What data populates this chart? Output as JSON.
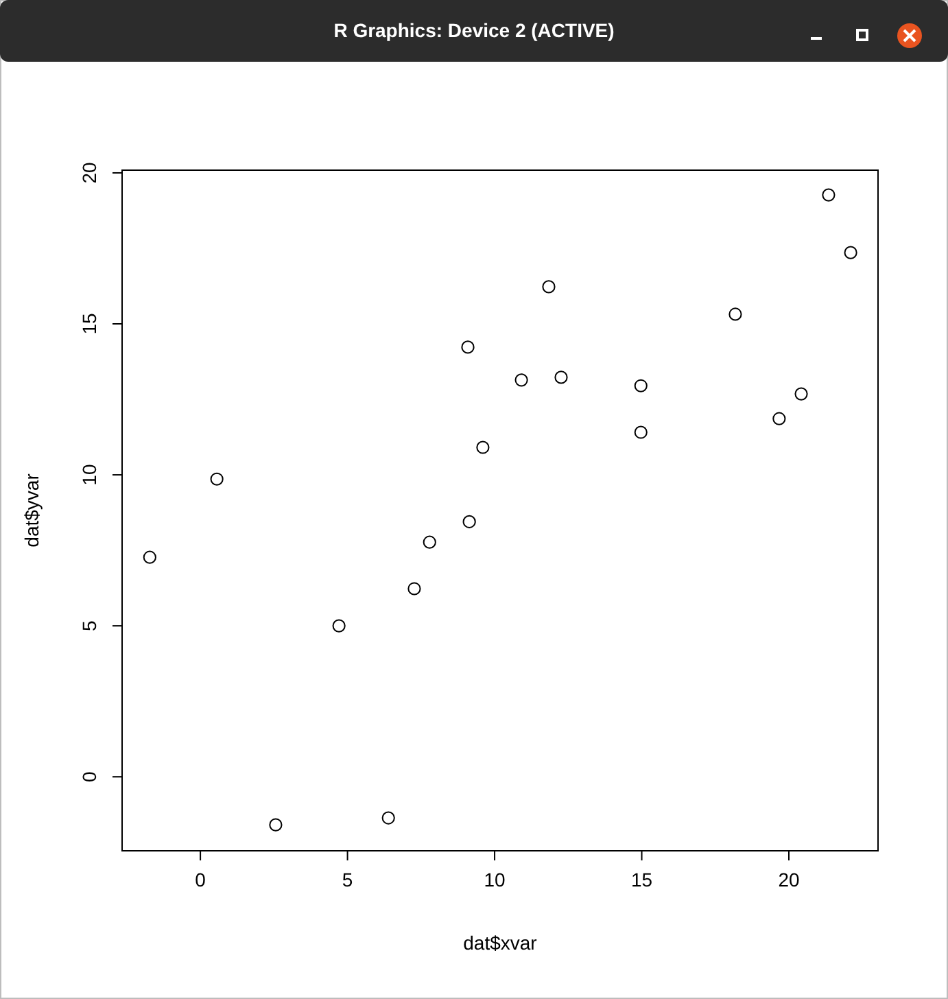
{
  "chart_data": {
    "type": "scatter",
    "xlabel": "dat$xvar",
    "ylabel": "dat$yvar",
    "annotations": [
      "R Graphics: Device 2 (ACTIVE)"
    ],
    "x": [
      -1.72,
      0.56,
      2.56,
      4.71,
      6.39,
      7.27,
      7.79,
      9.09,
      9.14,
      9.6,
      10.91,
      11.84,
      12.26,
      14.97,
      14.97,
      18.18,
      19.67,
      20.42,
      21.35,
      22.1
    ],
    "values": [
      7.27,
      9.86,
      -1.59,
      5.0,
      -1.36,
      6.23,
      7.77,
      14.23,
      8.45,
      10.91,
      13.14,
      16.23,
      13.23,
      12.95,
      11.41,
      15.32,
      11.86,
      12.68,
      19.27,
      17.36
    ],
    "color": "#000000",
    "marker": "circle",
    "grid": false,
    "xlim": [
      -2.66,
      23.03
    ],
    "ylim": [
      -2.45,
      20.09
    ],
    "xticks": [
      0,
      5,
      10,
      15,
      20
    ],
    "yticks": [
      0,
      5,
      10,
      15,
      20
    ]
  }
}
